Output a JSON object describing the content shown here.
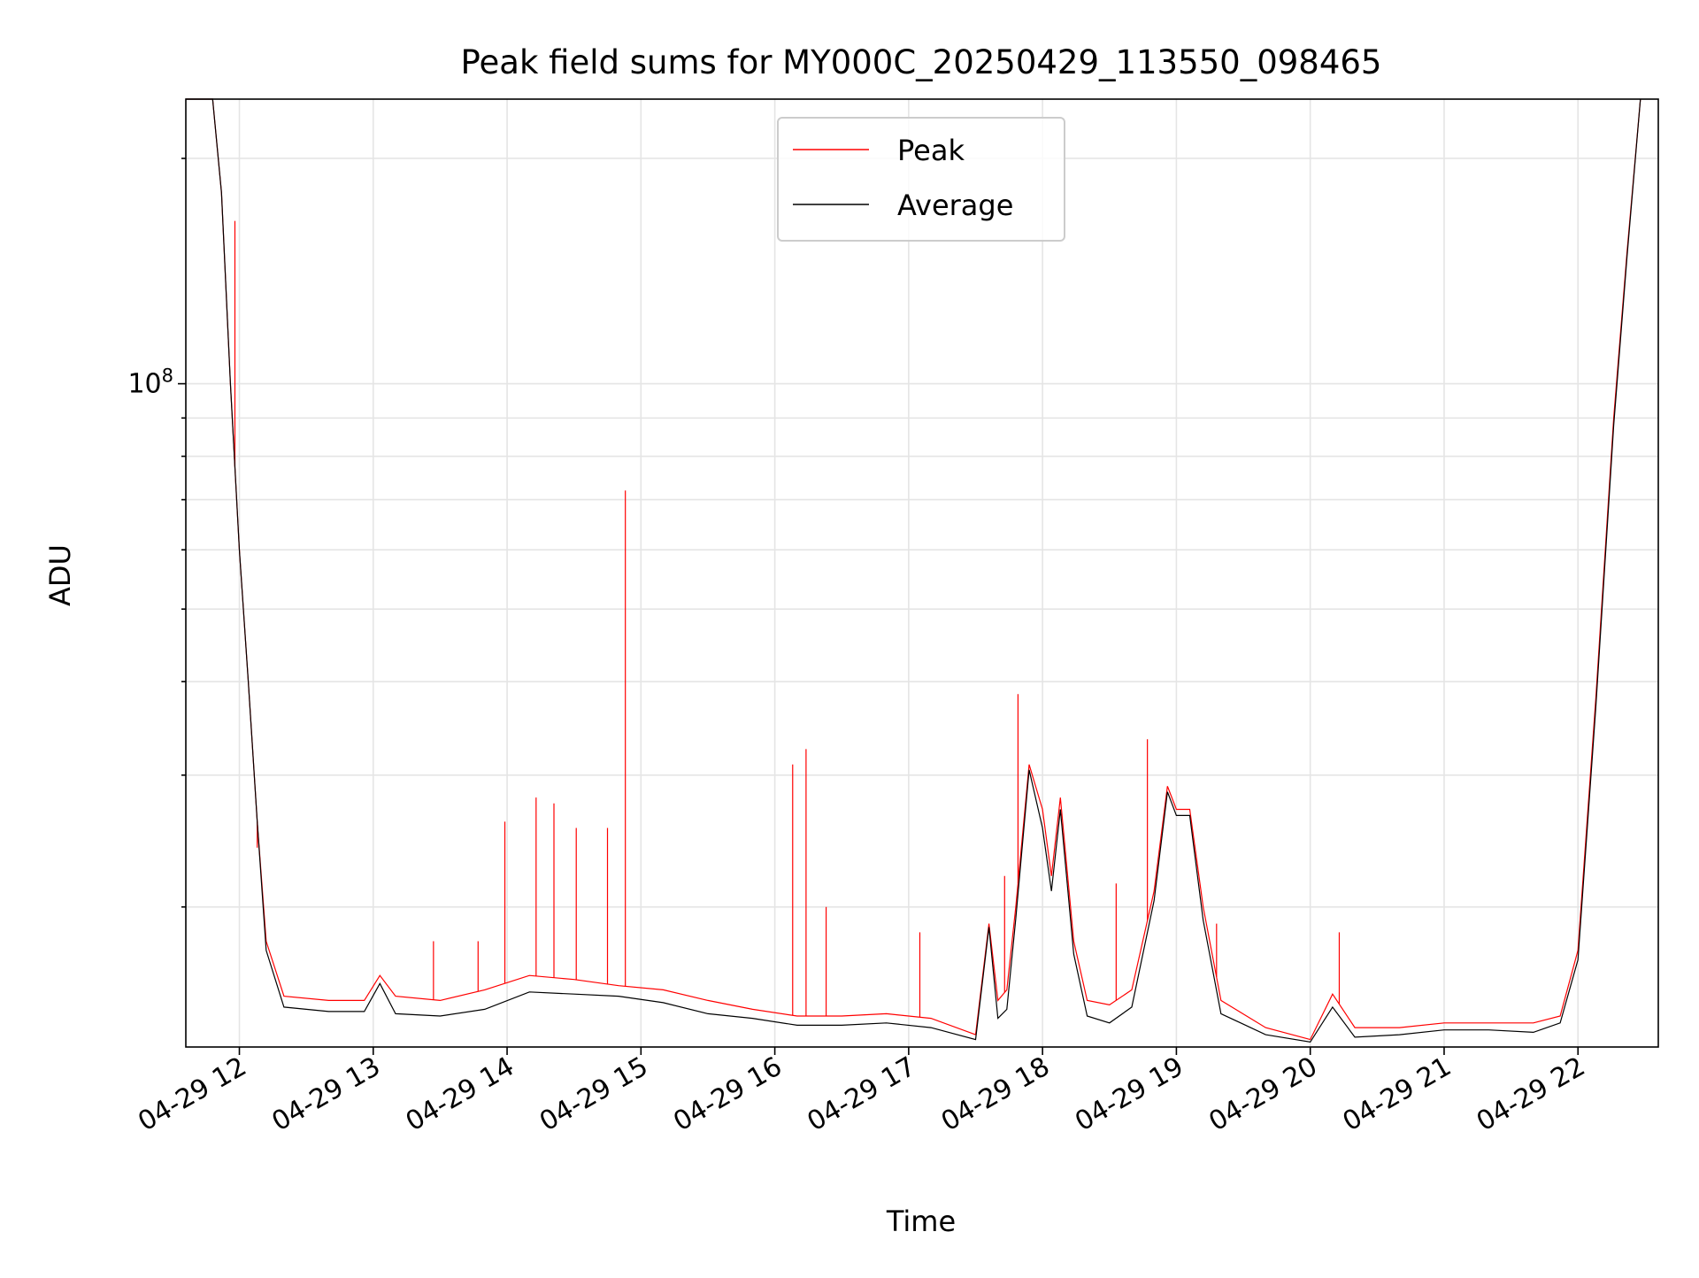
{
  "chart_data": {
    "type": "line",
    "title": "Peak field sums for MY000C_20250429_113550_098465",
    "xlabel": "Time",
    "ylabel": "ADU",
    "yscale": "log",
    "ylim": [
      13000000,
      240000000
    ],
    "xlim": [
      "2025-04-29 11:36",
      "2025-04-29 22:36"
    ],
    "grid": true,
    "legend": {
      "position": "upper center"
    },
    "x_ticks": [
      "04-29 12",
      "04-29 13",
      "04-29 14",
      "04-29 15",
      "04-29 16",
      "04-29 17",
      "04-29 18",
      "04-29 19",
      "04-29 20",
      "04-29 21",
      "04-29 22"
    ],
    "y_ticks": [
      {
        "label_base": "10",
        "label_exp": "8",
        "value": 100000000
      }
    ],
    "series": [
      {
        "name": "Peak",
        "color": "#ff0000",
        "x": [
          "2025-04-29 11:36",
          "2025-04-29 11:48",
          "2025-04-29 11:52",
          "2025-04-29 11:56",
          "2025-04-29 12:00",
          "2025-04-29 12:04",
          "2025-04-29 12:08",
          "2025-04-29 12:12",
          "2025-04-29 12:20",
          "2025-04-29 12:40",
          "2025-04-29 12:56",
          "2025-04-29 13:03",
          "2025-04-29 13:10",
          "2025-04-29 13:30",
          "2025-04-29 13:50",
          "2025-04-29 14:10",
          "2025-04-29 14:30",
          "2025-04-29 14:50",
          "2025-04-29 15:10",
          "2025-04-29 15:30",
          "2025-04-29 15:50",
          "2025-04-29 16:10",
          "2025-04-29 16:30",
          "2025-04-29 16:50",
          "2025-04-29 17:10",
          "2025-04-29 17:30",
          "2025-04-29 17:36",
          "2025-04-29 17:40",
          "2025-04-29 17:44",
          "2025-04-29 17:48",
          "2025-04-29 17:54",
          "2025-04-29 18:00",
          "2025-04-29 18:04",
          "2025-04-29 18:08",
          "2025-04-29 18:14",
          "2025-04-29 18:20",
          "2025-04-29 18:30",
          "2025-04-29 18:40",
          "2025-04-29 18:50",
          "2025-04-29 18:56",
          "2025-04-29 19:00",
          "2025-04-29 19:06",
          "2025-04-29 19:12",
          "2025-04-29 19:20",
          "2025-04-29 19:40",
          "2025-04-29 20:00",
          "2025-04-29 20:10",
          "2025-04-29 20:20",
          "2025-04-29 20:40",
          "2025-04-29 21:00",
          "2025-04-29 21:20",
          "2025-04-29 21:40",
          "2025-04-29 21:52",
          "2025-04-29 22:00",
          "2025-04-29 22:08",
          "2025-04-29 22:16",
          "2025-04-29 22:22",
          "2025-04-29 22:28"
        ],
        "y": [
          240000000,
          240000000,
          180000000,
          100000000,
          60000000,
          40000000,
          26000000,
          18000000,
          15200000,
          15000000,
          15000000,
          16200000,
          15200000,
          15000000,
          15500000,
          16200000,
          16000000,
          15700000,
          15500000,
          15000000,
          14600000,
          14300000,
          14300000,
          14400000,
          14200000,
          13500000,
          19000000,
          15000000,
          15500000,
          20000000,
          31000000,
          27000000,
          22000000,
          28000000,
          18000000,
          15000000,
          14800000,
          15500000,
          21000000,
          29000000,
          27000000,
          27000000,
          20000000,
          15000000,
          13800000,
          13300000,
          15300000,
          13800000,
          13800000,
          14000000,
          14000000,
          14000000,
          14300000,
          17500000,
          38000000,
          90000000,
          150000000,
          240000000
        ],
        "spikes": [
          {
            "x": "2025-04-29 11:58",
            "y": 165000000
          },
          {
            "x": "2025-04-29 12:08",
            "y": 24000000
          },
          {
            "x": "2025-04-29 13:27",
            "y": 18000000
          },
          {
            "x": "2025-04-29 13:47",
            "y": 18000000
          },
          {
            "x": "2025-04-29 13:59",
            "y": 26000000
          },
          {
            "x": "2025-04-29 14:13",
            "y": 28000000
          },
          {
            "x": "2025-04-29 14:21",
            "y": 27500000
          },
          {
            "x": "2025-04-29 14:31",
            "y": 25500000
          },
          {
            "x": "2025-04-29 14:45",
            "y": 25500000
          },
          {
            "x": "2025-04-29 14:53",
            "y": 72000000
          },
          {
            "x": "2025-04-29 16:08",
            "y": 31000000
          },
          {
            "x": "2025-04-29 16:14",
            "y": 32500000
          },
          {
            "x": "2025-04-29 16:23",
            "y": 20000000
          },
          {
            "x": "2025-04-29 17:05",
            "y": 18500000
          },
          {
            "x": "2025-04-29 17:43",
            "y": 22000000
          },
          {
            "x": "2025-04-29 17:49",
            "y": 38500000
          },
          {
            "x": "2025-04-29 18:33",
            "y": 21500000
          },
          {
            "x": "2025-04-29 18:47",
            "y": 33500000
          },
          {
            "x": "2025-04-29 19:18",
            "y": 19000000
          },
          {
            "x": "2025-04-29 20:13",
            "y": 18500000
          }
        ]
      },
      {
        "name": "Average",
        "color": "#000000",
        "x": [
          "2025-04-29 11:36",
          "2025-04-29 11:48",
          "2025-04-29 11:52",
          "2025-04-29 11:56",
          "2025-04-29 12:00",
          "2025-04-29 12:04",
          "2025-04-29 12:08",
          "2025-04-29 12:12",
          "2025-04-29 12:20",
          "2025-04-29 12:40",
          "2025-04-29 12:56",
          "2025-04-29 13:03",
          "2025-04-29 13:10",
          "2025-04-29 13:30",
          "2025-04-29 13:50",
          "2025-04-29 14:10",
          "2025-04-29 14:30",
          "2025-04-29 14:50",
          "2025-04-29 15:10",
          "2025-04-29 15:30",
          "2025-04-29 15:50",
          "2025-04-29 16:10",
          "2025-04-29 16:30",
          "2025-04-29 16:50",
          "2025-04-29 17:10",
          "2025-04-29 17:30",
          "2025-04-29 17:36",
          "2025-04-29 17:40",
          "2025-04-29 17:44",
          "2025-04-29 17:48",
          "2025-04-29 17:54",
          "2025-04-29 18:00",
          "2025-04-29 18:04",
          "2025-04-29 18:08",
          "2025-04-29 18:14",
          "2025-04-29 18:20",
          "2025-04-29 18:30",
          "2025-04-29 18:40",
          "2025-04-29 18:50",
          "2025-04-29 18:56",
          "2025-04-29 19:00",
          "2025-04-29 19:06",
          "2025-04-29 19:12",
          "2025-04-29 19:20",
          "2025-04-29 19:40",
          "2025-04-29 20:00",
          "2025-04-29 20:10",
          "2025-04-29 20:20",
          "2025-04-29 20:40",
          "2025-04-29 21:00",
          "2025-04-29 21:20",
          "2025-04-29 21:40",
          "2025-04-29 21:52",
          "2025-04-29 22:00",
          "2025-04-29 22:08",
          "2025-04-29 22:16",
          "2025-04-29 22:22",
          "2025-04-29 22:28"
        ],
        "y": [
          240000000,
          240000000,
          180000000,
          100000000,
          60000000,
          40000000,
          26000000,
          17500000,
          14700000,
          14500000,
          14500000,
          15800000,
          14400000,
          14300000,
          14600000,
          15400000,
          15300000,
          15200000,
          14900000,
          14400000,
          14200000,
          13900000,
          13900000,
          14000000,
          13800000,
          13300000,
          18800000,
          14200000,
          14600000,
          19300000,
          30500000,
          25500000,
          21000000,
          27000000,
          17300000,
          14300000,
          14000000,
          14700000,
          20400000,
          28500000,
          26500000,
          26500000,
          19200000,
          14400000,
          13500000,
          13200000,
          14700000,
          13400000,
          13500000,
          13700000,
          13700000,
          13600000,
          14000000,
          17000000,
          37000000,
          88000000,
          148000000,
          240000000
        ]
      }
    ]
  }
}
